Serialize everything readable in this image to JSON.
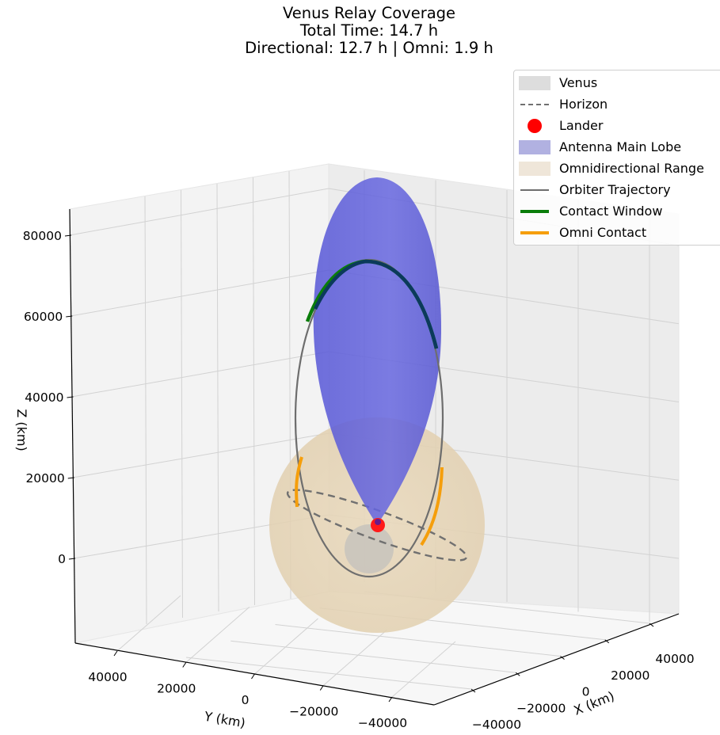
{
  "chart_data": {
    "type": "3d-orbit-plot",
    "title": [
      "Venus Relay Coverage",
      "Total Time: 14.7 h",
      "Directional: 12.7 h | Omni: 1.9 h"
    ],
    "xlabel": "X (km)",
    "ylabel": "Y (km)",
    "zlabel": "Z (km)",
    "x_ticks": [
      "40000",
      "20000",
      "0",
      "−20000",
      "−40000"
    ],
    "y_ticks": [
      "40000",
      "20000",
      "0",
      "−20000",
      "−40000"
    ],
    "z_ticks": [
      "80000",
      "60000",
      "40000",
      "20000",
      "0"
    ],
    "legend": [
      {
        "label": "Venus",
        "kind": "patch",
        "color": "#d9d9d9"
      },
      {
        "label": "Horizon",
        "kind": "dashed-line",
        "color": "#707070"
      },
      {
        "label": "Lander",
        "kind": "marker",
        "color": "#ff0000"
      },
      {
        "label": "Antenna Main Lobe",
        "kind": "patch",
        "color": "#b1b1e1"
      },
      {
        "label": "Omnidirectional Range",
        "kind": "patch",
        "color": "#efe6d9"
      },
      {
        "label": "Orbiter Trajectory",
        "kind": "line",
        "color": "#6e6e6e"
      },
      {
        "label": "Contact Window",
        "kind": "thick-line",
        "color": "#0a7d0a"
      },
      {
        "label": "Omni Contact",
        "kind": "thick-line",
        "color": "#f59e0b"
      }
    ],
    "legend_placement": "top-right",
    "grid": true,
    "colors": {
      "venus": "#c9c4bc",
      "antenna_lobe": "#5a5ad8",
      "omni_range": "#e6d6b8",
      "trajectory": "#6e6e6e",
      "contact_window": "#0a7d0a",
      "omni_contact": "#f59e0b",
      "lander": "#ff1a1a",
      "horizon": "#707070"
    }
  }
}
